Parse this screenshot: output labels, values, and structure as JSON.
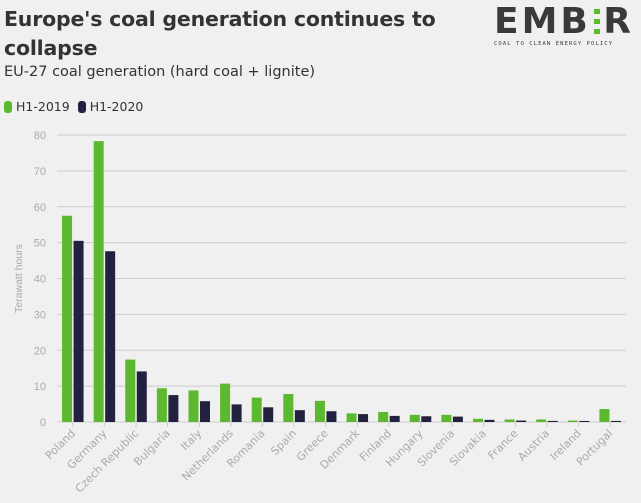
{
  "header": {
    "title": "Europe's coal generation continues to collapse",
    "subtitle": "EU-27 coal generation (hard coal + lignite)"
  },
  "logo": {
    "word_left": "EMB",
    "word_right": "R",
    "tagline": "COAL TO CLEAN ENERGY POLICY"
  },
  "legend": [
    {
      "label": "H1-2019",
      "color": "#5cb82e"
    },
    {
      "label": "H1-2020",
      "color": "#222240"
    }
  ],
  "chart_data": {
    "type": "bar",
    "title": "Europe's coal generation continues to collapse",
    "subtitle": "EU-27 coal generation (hard coal + lignite)",
    "xlabel": "",
    "ylabel": "Terawatt hours",
    "ylim": [
      0,
      80
    ],
    "yticks": [
      0,
      10,
      20,
      30,
      40,
      50,
      60,
      70,
      80
    ],
    "grid": true,
    "legend_position": "top-left",
    "categories": [
      "Poland",
      "Germany",
      "Czech Republic",
      "Bulgaria",
      "Italy",
      "Netherlands",
      "Romania",
      "Spain",
      "Greece",
      "Denmark",
      "Finland",
      "Hungary",
      "Slovenia",
      "Slovakia",
      "France",
      "Austria",
      "Ireland",
      "Portugal"
    ],
    "series": [
      {
        "name": "H1-2019",
        "color": "#5cb82e",
        "values": [
          57.5,
          78.3,
          17.4,
          9.4,
          8.8,
          10.7,
          6.8,
          7.8,
          5.9,
          2.4,
          2.8,
          2.0,
          2.0,
          0.9,
          0.7,
          0.7,
          0.4,
          3.6
        ]
      },
      {
        "name": "H1-2020",
        "color": "#222240",
        "values": [
          50.5,
          47.6,
          14.1,
          7.5,
          5.8,
          4.9,
          4.1,
          3.3,
          3.0,
          2.2,
          1.7,
          1.6,
          1.5,
          0.6,
          0.4,
          0.3,
          0.3,
          0.3
        ]
      }
    ]
  }
}
